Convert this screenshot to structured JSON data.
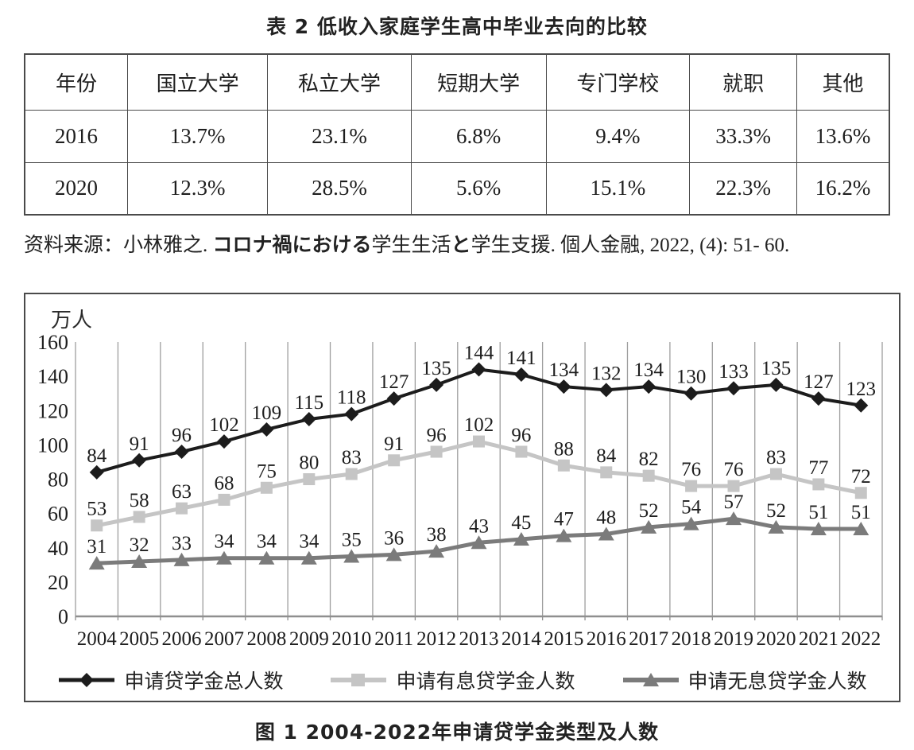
{
  "table_section": {
    "title": "表 2 低收入家庭学生高中毕业去向的比较",
    "columns": [
      "年份",
      "国立大学",
      "私立大学",
      "短期大学",
      "专门学校",
      "就职",
      "其他"
    ],
    "rows": [
      [
        "2016",
        "13.7%",
        "23.1%",
        "6.8%",
        "9.4%",
        "33.3%",
        "13.6%"
      ],
      [
        "2020",
        "12.3%",
        "28.5%",
        "5.6%",
        "15.1%",
        "22.3%",
        "16.2%"
      ]
    ],
    "source_segments": [
      {
        "text": "资料来源：小林雅之. "
      },
      {
        "text": "コロナ禍における"
      },
      {
        "text": "学生生活"
      },
      {
        "text": "と"
      },
      {
        "text": "学生支援"
      },
      {
        "text": ". 個人金融, 2022, (4): 51- 60."
      }
    ]
  },
  "figure": {
    "unit_label": "万人",
    "caption": "图 1 2004-2022年申请贷学金类型及人数"
  },
  "chart_data": {
    "type": "line",
    "title": "2004-2022年申请贷学金类型及人数",
    "ylabel": "万人",
    "xlabel": "",
    "ylim": [
      0,
      160
    ],
    "ytick_step": 20,
    "grid": "vertical",
    "legend_position": "bottom",
    "categories": [
      2004,
      2005,
      2006,
      2007,
      2008,
      2009,
      2010,
      2011,
      2012,
      2013,
      2014,
      2015,
      2016,
      2017,
      2018,
      2019,
      2020,
      2021,
      2022
    ],
    "series": [
      {
        "name": "申请贷学金总人数",
        "marker": "diamond",
        "color": "#1c1c1c",
        "values": [
          84,
          91,
          96,
          102,
          109,
          115,
          118,
          127,
          135,
          144,
          141,
          134,
          132,
          134,
          130,
          133,
          135,
          127,
          123
        ]
      },
      {
        "name": "申请有息贷学金人数",
        "marker": "square",
        "color": "#c5c5c5",
        "values": [
          53,
          58,
          63,
          68,
          75,
          80,
          83,
          91,
          96,
          102,
          96,
          88,
          84,
          82,
          76,
          76,
          83,
          77,
          72
        ]
      },
      {
        "name": "申请无息贷学金人数",
        "marker": "triangle",
        "color": "#7b7b7b",
        "values": [
          31,
          32,
          33,
          34,
          34,
          34,
          35,
          36,
          38,
          43,
          45,
          47,
          48,
          52,
          54,
          57,
          52,
          51,
          51
        ]
      }
    ],
    "colors": {
      "gridline": "#9e9e9e",
      "axis": "#8f8f8f",
      "label_text": "#1e1e1e"
    }
  }
}
